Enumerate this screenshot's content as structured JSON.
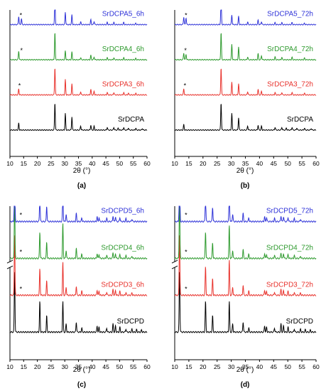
{
  "chart_data": [
    {
      "type": "line",
      "panel_label": "(a)",
      "xlabel": "2θ (°)",
      "xlim": [
        10,
        60
      ],
      "xticks": [
        10,
        15,
        20,
        25,
        30,
        35,
        40,
        45,
        50,
        55,
        60
      ],
      "series": [
        {
          "name": "SrDCPA",
          "color": "#000000",
          "marker": false,
          "peaks": [
            [
              13.2,
              0.25
            ],
            [
              26.4,
              1.0
            ],
            [
              30.2,
              0.6
            ],
            [
              32.6,
              0.48
            ],
            [
              35.8,
              0.15
            ],
            [
              39.5,
              0.18
            ],
            [
              40.7,
              0.14
            ],
            [
              45.5,
              0.1
            ],
            [
              47.9,
              0.1
            ],
            [
              49.5,
              0.08
            ],
            [
              51.5,
              0.1
            ],
            [
              53.2,
              0.08
            ],
            [
              55.9,
              0.07
            ],
            [
              58.3,
              0.06
            ]
          ]
        },
        {
          "name": "SrDCPA3_6h",
          "color": "#e8332d",
          "marker": true,
          "marker_pos": 13.5,
          "peaks": [
            [
              13.2,
              0.22
            ],
            [
              26.4,
              1.0
            ],
            [
              30.2,
              0.55
            ],
            [
              32.6,
              0.4
            ],
            [
              35.8,
              0.12
            ],
            [
              39.5,
              0.2
            ],
            [
              40.7,
              0.13
            ],
            [
              45.5,
              0.09
            ],
            [
              47.9,
              0.09
            ],
            [
              51.5,
              0.09
            ],
            [
              53.2,
              0.07
            ],
            [
              55.9,
              0.06
            ]
          ]
        },
        {
          "name": "SrDCPA4_6h",
          "color": "#2e9a2e",
          "marker": true,
          "marker_pos": 14.2,
          "peaks": [
            [
              13.2,
              0.32
            ],
            [
              26.4,
              1.0
            ],
            [
              30.2,
              0.32
            ],
            [
              32.6,
              0.28
            ],
            [
              35.8,
              0.08
            ],
            [
              39.5,
              0.16
            ],
            [
              40.7,
              0.1
            ],
            [
              45.5,
              0.07
            ],
            [
              47.9,
              0.07
            ],
            [
              51.5,
              0.07
            ],
            [
              55.9,
              0.05
            ]
          ]
        },
        {
          "name": "SrDCPA5_6h",
          "color": "#2f33d8",
          "marker": true,
          "marker_pos": 14.0,
          "peaks": [
            [
              13.2,
              0.3
            ],
            [
              14.2,
              0.22
            ],
            [
              26.4,
              1.0
            ],
            [
              30.2,
              0.45
            ],
            [
              32.6,
              0.35
            ],
            [
              35.8,
              0.1
            ],
            [
              39.5,
              0.18
            ],
            [
              40.7,
              0.12
            ],
            [
              45.5,
              0.08
            ],
            [
              47.9,
              0.08
            ],
            [
              51.5,
              0.08
            ],
            [
              55.9,
              0.05
            ]
          ]
        }
      ]
    },
    {
      "type": "line",
      "panel_label": "(b)",
      "xlabel": "2θ (°)",
      "xlim": [
        10,
        60
      ],
      "xticks": [
        10,
        15,
        20,
        25,
        30,
        35,
        40,
        45,
        50,
        55,
        60
      ],
      "series": [
        {
          "name": "SrDCPA",
          "color": "#000000",
          "marker": false,
          "peaks": [
            [
              13.2,
              0.2
            ],
            [
              26.4,
              1.0
            ],
            [
              30.2,
              0.6
            ],
            [
              32.6,
              0.45
            ],
            [
              35.8,
              0.15
            ],
            [
              39.5,
              0.18
            ],
            [
              40.7,
              0.14
            ],
            [
              45.5,
              0.1
            ],
            [
              47.9,
              0.1
            ],
            [
              49.5,
              0.08
            ],
            [
              51.5,
              0.1
            ],
            [
              53.2,
              0.08
            ],
            [
              55.9,
              0.07
            ],
            [
              58.3,
              0.06
            ]
          ]
        },
        {
          "name": "SrDCPA3_72h",
          "color": "#e8332d",
          "marker": true,
          "marker_pos": 13.6,
          "peaks": [
            [
              13.2,
              0.22
            ],
            [
              26.4,
              1.0
            ],
            [
              30.2,
              0.45
            ],
            [
              32.6,
              0.4
            ],
            [
              35.8,
              0.12
            ],
            [
              39.5,
              0.2
            ],
            [
              40.7,
              0.13
            ],
            [
              45.5,
              0.09
            ],
            [
              47.9,
              0.09
            ],
            [
              51.5,
              0.09
            ],
            [
              55.9,
              0.06
            ]
          ]
        },
        {
          "name": "SrDCPA4_72h",
          "color": "#2e9a2e",
          "marker": true,
          "marker_pos": 13.8,
          "peaks": [
            [
              13.2,
              0.25
            ],
            [
              14.0,
              0.2
            ],
            [
              26.4,
              1.0
            ],
            [
              30.2,
              0.55
            ],
            [
              32.6,
              0.45
            ],
            [
              35.8,
              0.1
            ],
            [
              39.5,
              0.22
            ],
            [
              40.7,
              0.15
            ],
            [
              45.5,
              0.1
            ],
            [
              47.9,
              0.09
            ],
            [
              51.5,
              0.09
            ],
            [
              55.9,
              0.06
            ]
          ]
        },
        {
          "name": "SrDCPA5_72h",
          "color": "#2f33d8",
          "marker": true,
          "marker_pos": 14.0,
          "peaks": [
            [
              13.2,
              0.28
            ],
            [
              14.0,
              0.25
            ],
            [
              26.4,
              1.0
            ],
            [
              30.2,
              0.35
            ],
            [
              32.6,
              0.3
            ],
            [
              35.8,
              0.09
            ],
            [
              39.5,
              0.16
            ],
            [
              40.7,
              0.11
            ],
            [
              45.5,
              0.07
            ],
            [
              47.9,
              0.07
            ],
            [
              51.5,
              0.07
            ],
            [
              55.9,
              0.05
            ]
          ]
        }
      ]
    },
    {
      "type": "line",
      "panel_label": "(c)",
      "xlabel": "2θ (°)",
      "xlim": [
        10,
        60
      ],
      "xticks": [
        10,
        15,
        20,
        25,
        30,
        35,
        40,
        45,
        50,
        55,
        60
      ],
      "axis_break": true,
      "series": [
        {
          "name": "SrDCPD",
          "color": "#000000",
          "marker": false,
          "peaks": [
            [
              11.7,
              1.5
            ],
            [
              20.9,
              0.75
            ],
            [
              23.4,
              0.4
            ],
            [
              29.3,
              0.75
            ],
            [
              30.5,
              0.2
            ],
            [
              34.2,
              0.25
            ],
            [
              36.2,
              0.1
            ],
            [
              41.8,
              0.15
            ],
            [
              42.5,
              0.12
            ],
            [
              45.3,
              0.1
            ],
            [
              47.6,
              0.2
            ],
            [
              48.5,
              0.15
            ],
            [
              50.1,
              0.12
            ],
            [
              52.3,
              0.08
            ],
            [
              54.5,
              0.07
            ],
            [
              56.2,
              0.06
            ],
            [
              58.0,
              0.05
            ]
          ]
        },
        {
          "name": "SrDCPD3_6h",
          "color": "#e8332d",
          "marker": true,
          "marker_pos": 14.0,
          "peaks": [
            [
              11.7,
              1.5
            ],
            [
              20.9,
              0.65
            ],
            [
              23.4,
              0.35
            ],
            [
              29.3,
              0.8
            ],
            [
              30.5,
              0.2
            ],
            [
              34.2,
              0.22
            ],
            [
              36.2,
              0.1
            ],
            [
              41.8,
              0.13
            ],
            [
              42.5,
              0.1
            ],
            [
              45.3,
              0.08
            ],
            [
              47.6,
              0.15
            ],
            [
              48.5,
              0.12
            ],
            [
              50.1,
              0.1
            ],
            [
              52.3,
              0.07
            ],
            [
              54.5,
              0.06
            ]
          ]
        },
        {
          "name": "SrDCPD4_6h",
          "color": "#2e9a2e",
          "marker": true,
          "marker_pos": 14.0,
          "peaks": [
            [
              11.7,
              1.5
            ],
            [
              20.9,
              0.65
            ],
            [
              23.4,
              0.4
            ],
            [
              29.3,
              0.85
            ],
            [
              30.5,
              0.2
            ],
            [
              34.2,
              0.25
            ],
            [
              36.2,
              0.1
            ],
            [
              41.8,
              0.12
            ],
            [
              42.5,
              0.1
            ],
            [
              45.3,
              0.08
            ],
            [
              47.6,
              0.15
            ],
            [
              48.5,
              0.12
            ],
            [
              50.1,
              0.1
            ],
            [
              52.3,
              0.07
            ],
            [
              54.5,
              0.06
            ]
          ]
        },
        {
          "name": "SrDCPD5_6h",
          "color": "#2f33d8",
          "marker": true,
          "marker_pos": 14.0,
          "peaks": [
            [
              11.7,
              1.5
            ],
            [
              20.9,
              0.6
            ],
            [
              23.4,
              0.38
            ],
            [
              29.3,
              0.75
            ],
            [
              30.5,
              0.18
            ],
            [
              34.2,
              0.2
            ],
            [
              36.2,
              0.09
            ],
            [
              41.8,
              0.12
            ],
            [
              42.5,
              0.1
            ],
            [
              45.3,
              0.08
            ],
            [
              47.6,
              0.14
            ],
            [
              48.5,
              0.12
            ],
            [
              50.1,
              0.1
            ],
            [
              52.3,
              0.07
            ],
            [
              54.5,
              0.06
            ]
          ]
        }
      ]
    },
    {
      "type": "line",
      "panel_label": "(d)",
      "xlabel": "2θ (°)",
      "xlim": [
        10,
        60
      ],
      "xticks": [
        10,
        15,
        20,
        25,
        30,
        35,
        40,
        45,
        50,
        55,
        60
      ],
      "axis_break": true,
      "series": [
        {
          "name": "SrDCPD",
          "color": "#000000",
          "marker": false,
          "peaks": [
            [
              11.7,
              1.5
            ],
            [
              20.9,
              0.75
            ],
            [
              23.4,
              0.4
            ],
            [
              29.3,
              0.75
            ],
            [
              30.5,
              0.2
            ],
            [
              34.2,
              0.25
            ],
            [
              36.2,
              0.1
            ],
            [
              41.8,
              0.15
            ],
            [
              42.5,
              0.12
            ],
            [
              45.3,
              0.1
            ],
            [
              47.6,
              0.2
            ],
            [
              48.5,
              0.15
            ],
            [
              50.1,
              0.12
            ],
            [
              52.3,
              0.08
            ],
            [
              54.5,
              0.07
            ],
            [
              56.2,
              0.06
            ],
            [
              58.0,
              0.05
            ]
          ]
        },
        {
          "name": "SrDCPD3_72h",
          "color": "#e8332d",
          "marker": true,
          "marker_pos": 14.0,
          "peaks": [
            [
              11.7,
              1.5
            ],
            [
              20.9,
              0.7
            ],
            [
              23.4,
              0.4
            ],
            [
              29.3,
              0.85
            ],
            [
              30.5,
              0.2
            ],
            [
              34.2,
              0.25
            ],
            [
              36.2,
              0.1
            ],
            [
              41.8,
              0.13
            ],
            [
              42.5,
              0.1
            ],
            [
              45.3,
              0.08
            ],
            [
              47.6,
              0.15
            ],
            [
              48.5,
              0.12
            ],
            [
              50.1,
              0.1
            ],
            [
              52.3,
              0.07
            ],
            [
              54.5,
              0.06
            ]
          ]
        },
        {
          "name": "SrDCPD4_72h",
          "color": "#2e9a2e",
          "marker": true,
          "marker_pos": 14.0,
          "peaks": [
            [
              11.7,
              1.5
            ],
            [
              20.9,
              0.65
            ],
            [
              23.4,
              0.38
            ],
            [
              29.3,
              0.8
            ],
            [
              30.5,
              0.2
            ],
            [
              34.2,
              0.22
            ],
            [
              36.2,
              0.1
            ],
            [
              41.8,
              0.12
            ],
            [
              42.5,
              0.1
            ],
            [
              45.3,
              0.08
            ],
            [
              47.6,
              0.14
            ],
            [
              48.5,
              0.12
            ],
            [
              50.1,
              0.1
            ],
            [
              52.3,
              0.07
            ],
            [
              54.5,
              0.06
            ]
          ]
        },
        {
          "name": "SrDCPD5_72h",
          "color": "#2f33d8",
          "marker": true,
          "marker_pos": 14.0,
          "peaks": [
            [
              11.7,
              1.5
            ],
            [
              20.9,
              0.6
            ],
            [
              23.4,
              0.35
            ],
            [
              29.3,
              0.75
            ],
            [
              30.5,
              0.18
            ],
            [
              34.2,
              0.2
            ],
            [
              36.2,
              0.09
            ],
            [
              41.8,
              0.12
            ],
            [
              42.5,
              0.1
            ],
            [
              45.3,
              0.08
            ],
            [
              47.6,
              0.14
            ],
            [
              48.5,
              0.12
            ],
            [
              50.1,
              0.1
            ],
            [
              52.3,
              0.07
            ],
            [
              54.5,
              0.06
            ]
          ]
        }
      ]
    }
  ]
}
